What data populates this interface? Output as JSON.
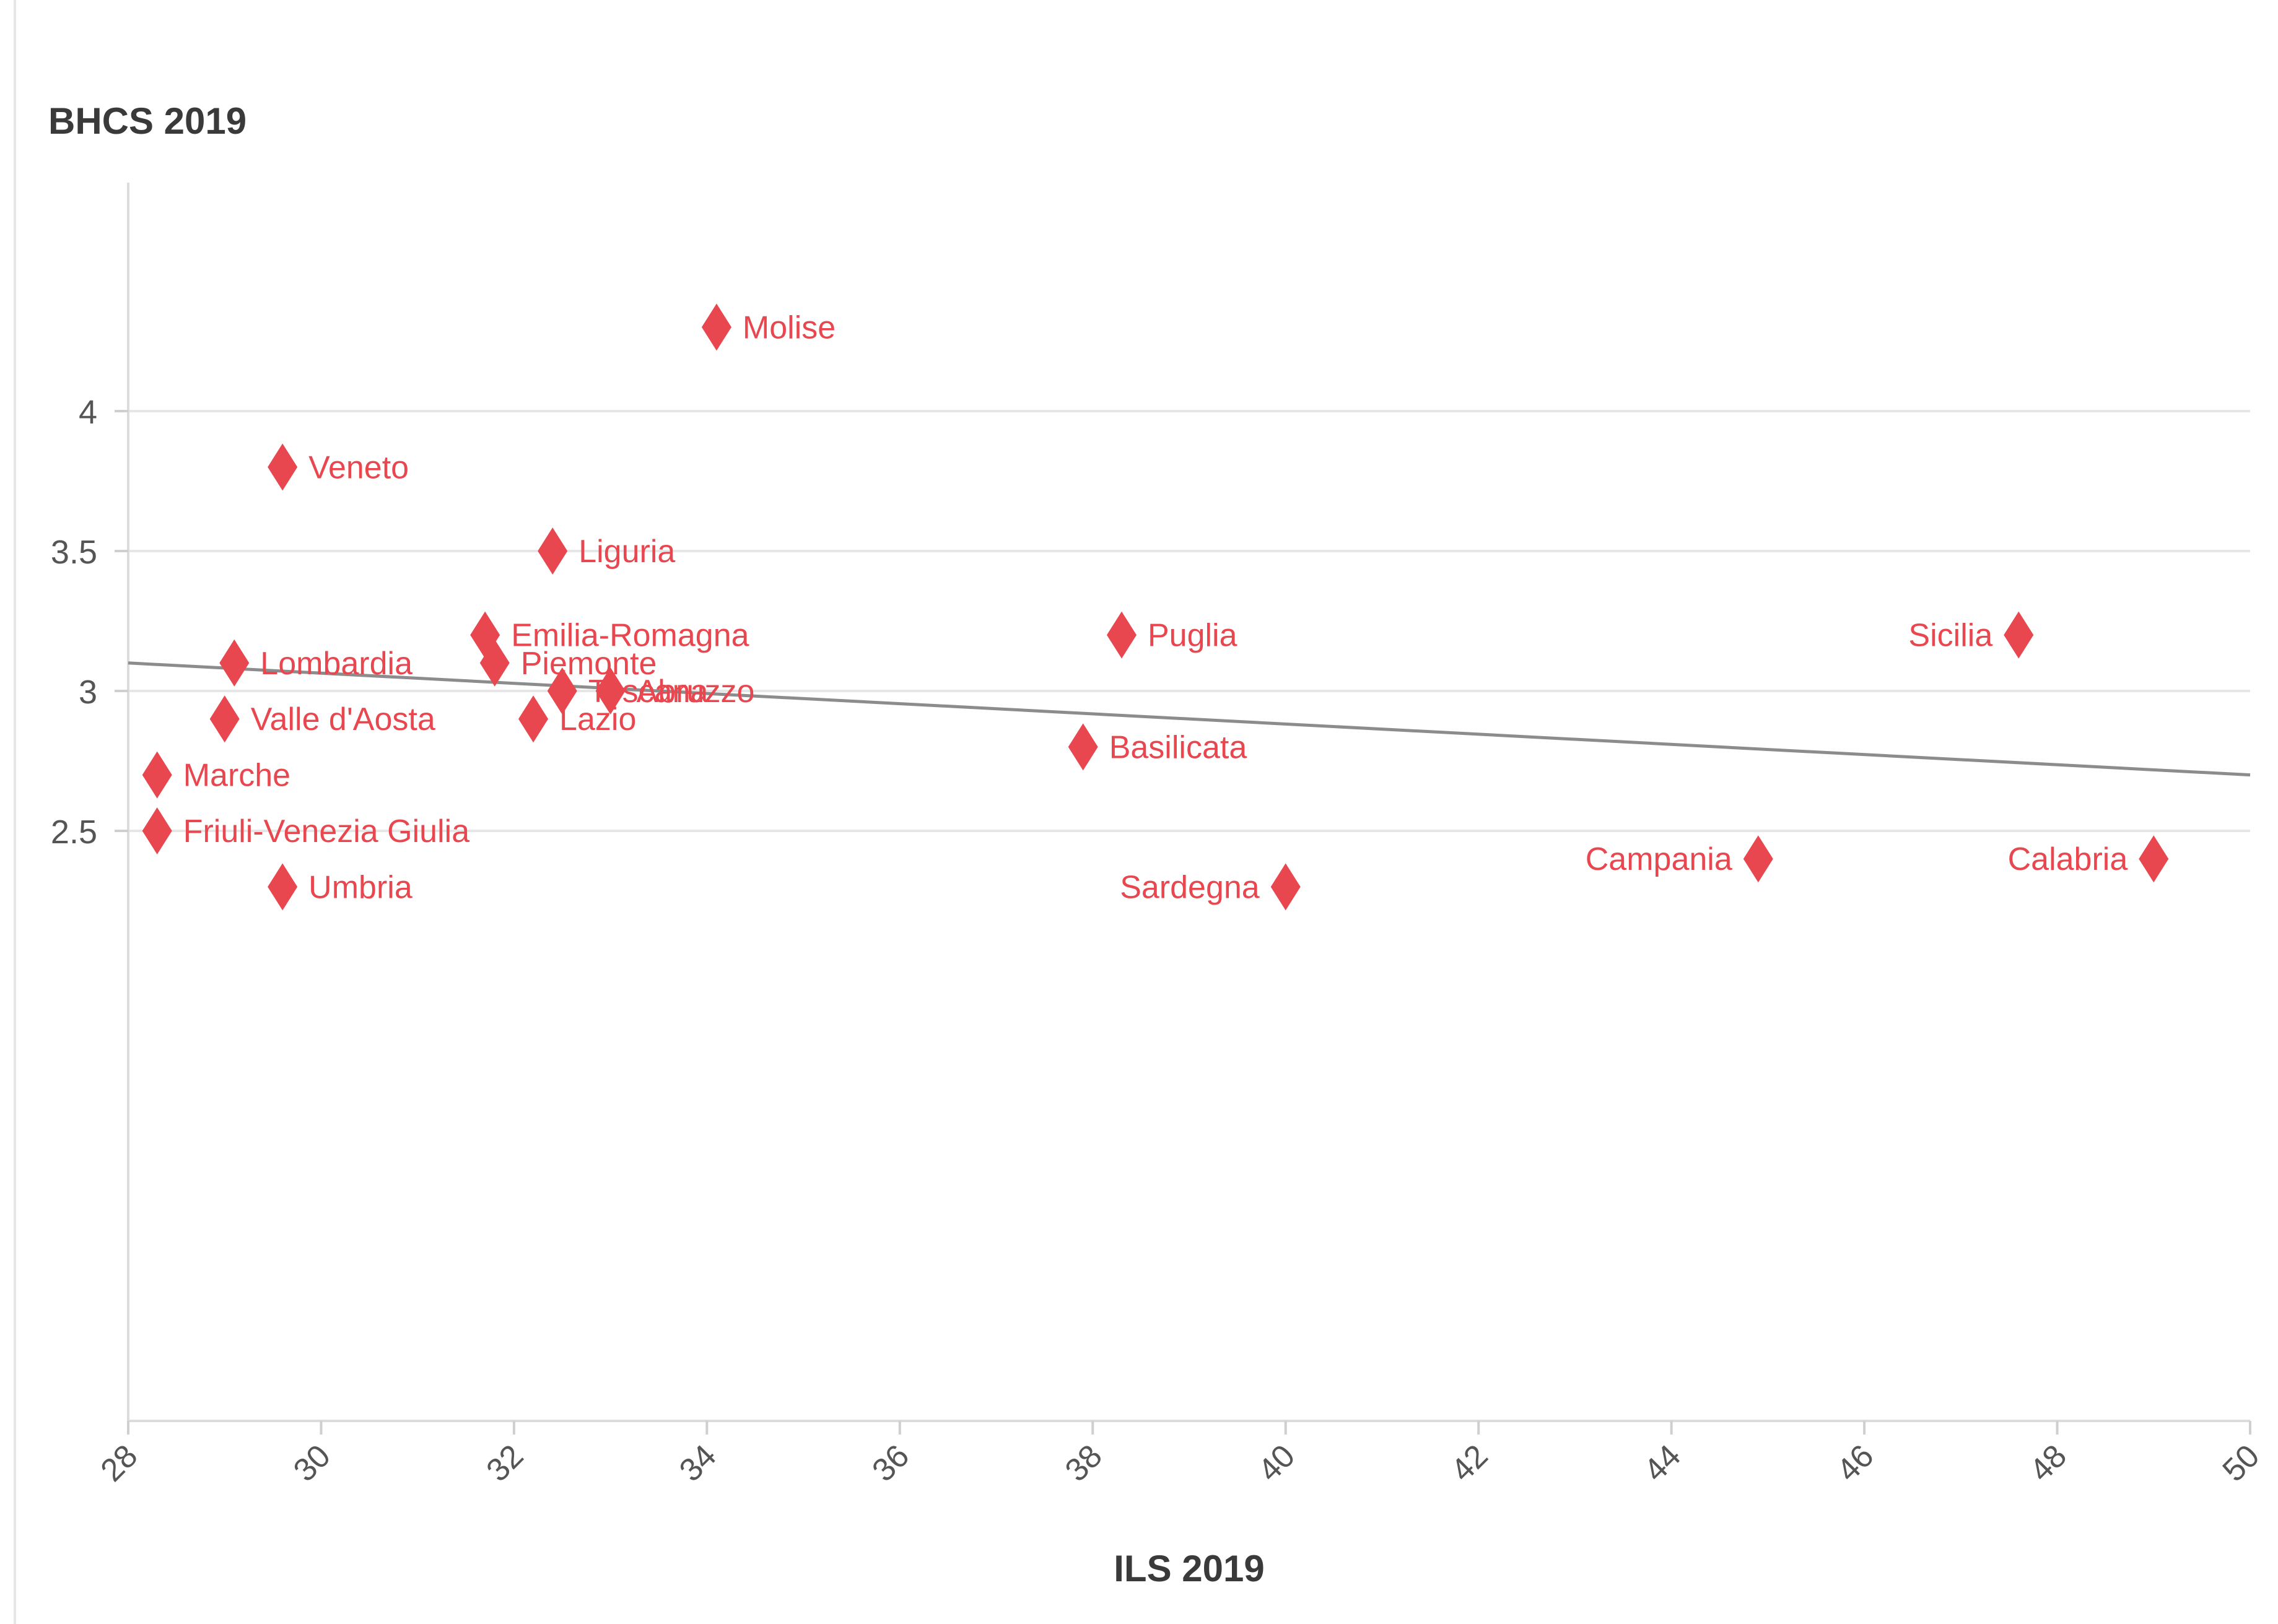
{
  "chart_data": {
    "type": "scatter",
    "xlabel": "ILS 2019",
    "ylabel": "BHCS 2019",
    "xlim": [
      28,
      50
    ],
    "ylim": [
      2.2,
      4.4
    ],
    "x_ticks": [
      "28",
      "30",
      "32",
      "34",
      "36",
      "38",
      "40",
      "42",
      "44",
      "46",
      "48",
      "50"
    ],
    "y_ticks": [
      "2.5",
      "3",
      "3.5",
      "4"
    ],
    "grid": "horizontal",
    "marker": "diamond",
    "point_color": "#e8474f",
    "trendline_color": "#8c8c8c",
    "trendline": {
      "x": [
        28,
        50
      ],
      "y": [
        3.1,
        2.7
      ]
    },
    "points": [
      {
        "label": "Molise",
        "x": 34.1,
        "y": 4.3,
        "label_side": "right"
      },
      {
        "label": "Veneto",
        "x": 29.6,
        "y": 3.8,
        "label_side": "right"
      },
      {
        "label": "Liguria",
        "x": 32.4,
        "y": 3.5,
        "label_side": "right"
      },
      {
        "label": "Emilia-Romagna",
        "x": 31.7,
        "y": 3.2,
        "label_side": "right"
      },
      {
        "label": "Puglia",
        "x": 38.3,
        "y": 3.2,
        "label_side": "right"
      },
      {
        "label": "Sicilia",
        "x": 47.6,
        "y": 3.2,
        "label_side": "left"
      },
      {
        "label": "Lombardia",
        "x": 29.1,
        "y": 3.1,
        "label_side": "right"
      },
      {
        "label": "Piemonte",
        "x": 31.8,
        "y": 3.1,
        "label_side": "right"
      },
      {
        "label": "Toscana",
        "x": 32.5,
        "y": 3.0,
        "label_side": "right"
      },
      {
        "label": "Abruzzo",
        "x": 33.0,
        "y": 3.0,
        "label_side": "right"
      },
      {
        "label": "Valle d'Aosta",
        "x": 29.0,
        "y": 2.9,
        "label_side": "right"
      },
      {
        "label": "Lazio",
        "x": 32.2,
        "y": 2.9,
        "label_side": "right"
      },
      {
        "label": "Basilicata",
        "x": 37.9,
        "y": 2.8,
        "label_side": "right"
      },
      {
        "label": "Marche",
        "x": 28.3,
        "y": 2.7,
        "label_side": "right"
      },
      {
        "label": "Friuli-Venezia Giulia",
        "x": 28.3,
        "y": 2.5,
        "label_side": "right"
      },
      {
        "label": "Umbria",
        "x": 29.6,
        "y": 2.3,
        "label_side": "right"
      },
      {
        "label": "Sardegna",
        "x": 40.0,
        "y": 2.3,
        "label_side": "left"
      },
      {
        "label": "Campania",
        "x": 44.9,
        "y": 2.4,
        "label_side": "left"
      },
      {
        "label": "Calabria",
        "x": 49.0,
        "y": 2.4,
        "label_side": "left"
      }
    ]
  }
}
